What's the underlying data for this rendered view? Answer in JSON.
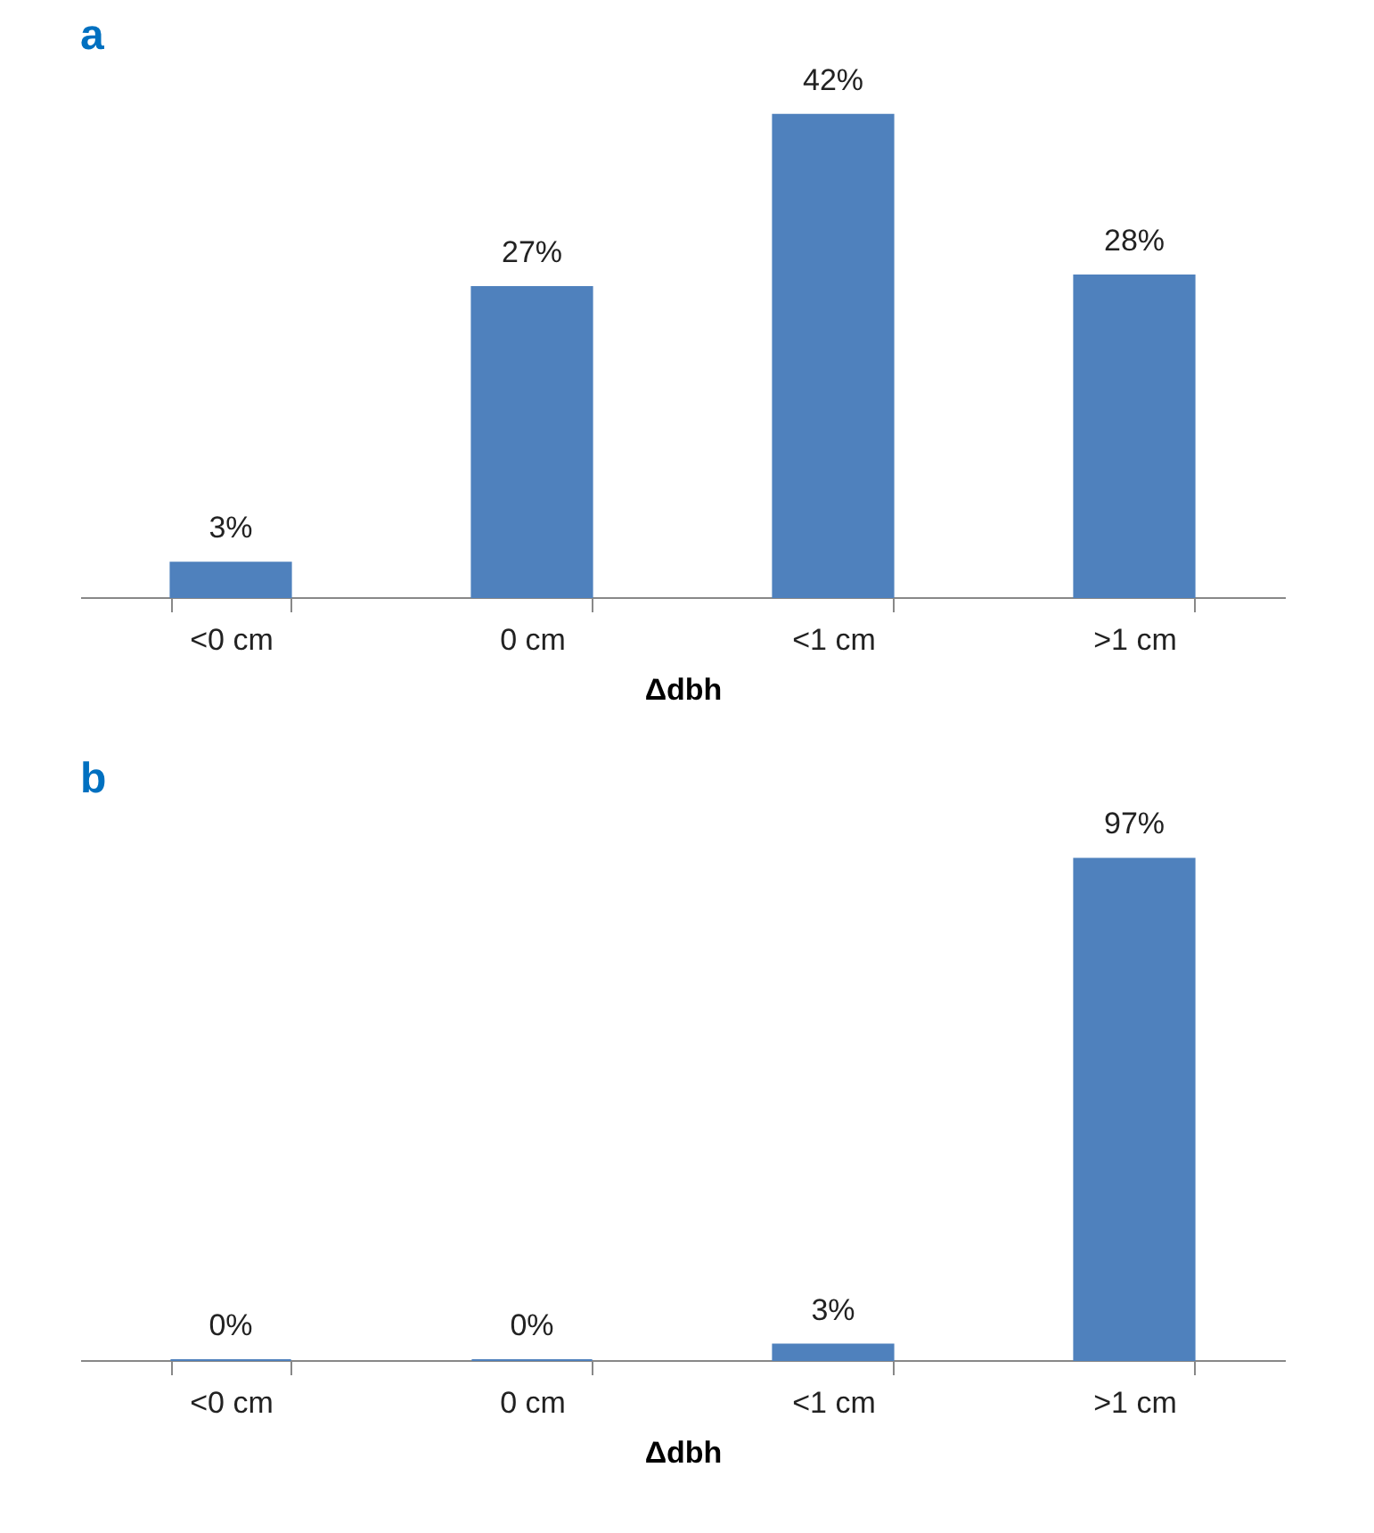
{
  "chart_data": [
    {
      "type": "bar",
      "title": "a",
      "xlabel": "Δdbh",
      "categories": [
        "<0 cm",
        "0 cm",
        "<1 cm",
        ">1 cm"
      ],
      "values": [
        3,
        27,
        42,
        28
      ],
      "color": "#4f81bd",
      "value_labels": [
        "3%",
        "27%",
        "42%",
        "28%"
      ]
    },
    {
      "type": "bar",
      "title": "b",
      "xlabel": "Δdbh",
      "categories": [
        "<0 cm",
        "0 cm",
        "<1 cm",
        ">1 cm"
      ],
      "values": [
        0,
        0,
        3,
        97
      ],
      "color": "#4f81bd",
      "value_labels": [
        "0%",
        "0%",
        "3%",
        "97%"
      ]
    }
  ]
}
